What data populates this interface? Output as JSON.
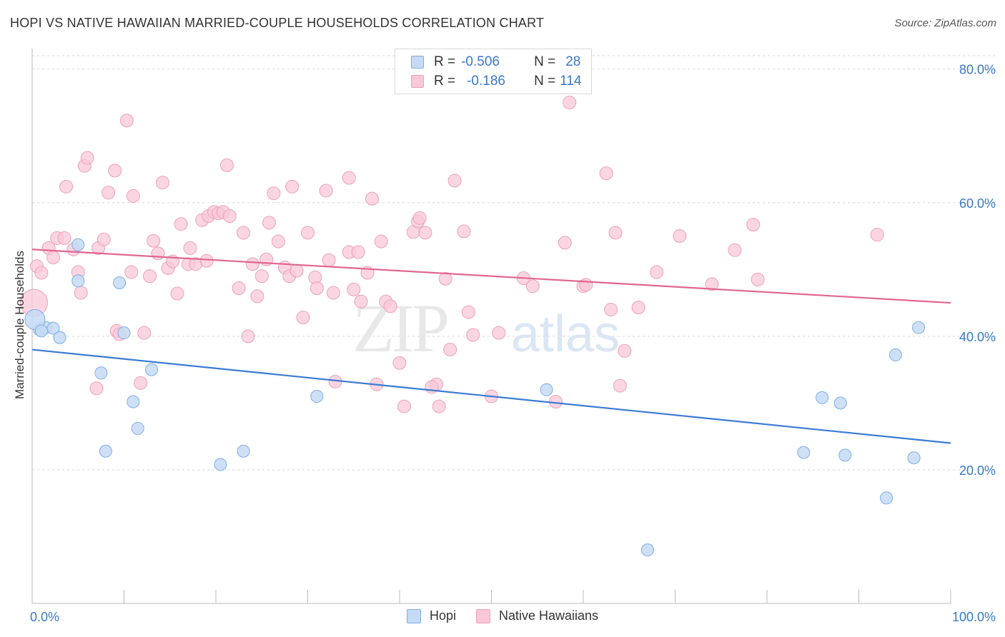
{
  "header": {
    "title": "HOPI VS NATIVE HAWAIIAN MARRIED-COUPLE HOUSEHOLDS CORRELATION CHART",
    "source": "Source: ZipAtlas.com"
  },
  "legend_top": {
    "rows": [
      {
        "r_label": "R =",
        "r_value": "-0.506",
        "n_label": "N =",
        "n_value": "28"
      },
      {
        "r_label": "R =",
        "r_value": "-0.186",
        "n_label": "N =",
        "n_value": "114"
      }
    ]
  },
  "watermark": {
    "zip": "ZIP",
    "atlas": "atlas"
  },
  "chart_data": {
    "type": "scatter",
    "xlabel": "",
    "ylabel": "Married-couple Households",
    "xlim": [
      0,
      100
    ],
    "ylim": [
      0,
      82
    ],
    "x_tick_labels": [
      {
        "value": 0,
        "label": "0.0%"
      },
      {
        "value": 100,
        "label": "100.0%"
      }
    ],
    "y_tick_labels": [
      {
        "value": 20,
        "label": "20.0%"
      },
      {
        "value": 40,
        "label": "40.0%"
      },
      {
        "value": 60,
        "label": "60.0%"
      },
      {
        "value": 80,
        "label": "80.0%"
      }
    ],
    "grid": "horizontal dashed",
    "legend": "bottom-center",
    "colors": {
      "hopi_fill": "#c5daf5",
      "hopi_stroke": "#7eaee6",
      "hopi_line": "#3a7bd5",
      "nh_fill": "#f9c8d8",
      "nh_stroke": "#eca0bb",
      "nh_line": "#e0678f",
      "value_text": "#3a78c9"
    },
    "series": [
      {
        "name": "Hopi",
        "trend": {
          "x": [
            0,
            100
          ],
          "y": [
            38.0,
            24.0
          ]
        },
        "points": [
          [
            0.8,
            41
          ],
          [
            1.5,
            41.3
          ],
          [
            2.3,
            41.2
          ],
          [
            3.0,
            39.8
          ],
          [
            5.0,
            53.7
          ],
          [
            5.0,
            48.3
          ],
          [
            7.5,
            34.5
          ],
          [
            9.5,
            48.0
          ],
          [
            8.0,
            22.8
          ],
          [
            10.0,
            40.5
          ],
          [
            11.5,
            26.2
          ],
          [
            11.0,
            30.2
          ],
          [
            13.0,
            35.0
          ],
          [
            20.5,
            20.8
          ],
          [
            23.0,
            22.8
          ],
          [
            31.0,
            31.0
          ],
          [
            56.0,
            32.0
          ],
          [
            67.0,
            8.0
          ],
          [
            86.0,
            30.8
          ],
          [
            88.0,
            30.0
          ],
          [
            84.0,
            22.6
          ],
          [
            88.5,
            22.2
          ],
          [
            93.0,
            15.8
          ],
          [
            94.0,
            37.2
          ],
          [
            96.0,
            21.8
          ],
          [
            96.5,
            41.3
          ],
          [
            0.3,
            42.5
          ],
          [
            1.0,
            40.8
          ]
        ]
      },
      {
        "name": "Native Hawaiians",
        "trend": {
          "x": [
            0,
            100
          ],
          "y": [
            53.0,
            45.0
          ]
        },
        "points": [
          [
            0.5,
            50.5
          ],
          [
            1.0,
            49.5
          ],
          [
            1.8,
            53.2
          ],
          [
            2.3,
            51.8
          ],
          [
            2.7,
            54.7
          ],
          [
            3.5,
            54.7
          ],
          [
            4.5,
            53.0
          ],
          [
            5.0,
            49.6
          ],
          [
            5.3,
            46.5
          ],
          [
            3.7,
            62.4
          ],
          [
            5.7,
            65.5
          ],
          [
            6.0,
            66.7
          ],
          [
            7.0,
            32.2
          ],
          [
            7.2,
            53.2
          ],
          [
            7.8,
            54.5
          ],
          [
            8.3,
            61.5
          ],
          [
            9.0,
            64.8
          ],
          [
            9.2,
            40.8
          ],
          [
            9.5,
            40.3
          ],
          [
            10.3,
            72.3
          ],
          [
            10.8,
            49.6
          ],
          [
            11.0,
            61.0
          ],
          [
            11.8,
            33.0
          ],
          [
            12.2,
            40.5
          ],
          [
            12.8,
            49.0
          ],
          [
            13.2,
            54.3
          ],
          [
            13.7,
            52.4
          ],
          [
            14.2,
            63.0
          ],
          [
            14.8,
            50.2
          ],
          [
            15.3,
            51.2
          ],
          [
            15.8,
            46.4
          ],
          [
            16.2,
            56.8
          ],
          [
            17.0,
            50.8
          ],
          [
            17.2,
            53.2
          ],
          [
            17.8,
            50.8
          ],
          [
            18.5,
            57.4
          ],
          [
            19.0,
            51.3
          ],
          [
            19.2,
            58.0
          ],
          [
            19.8,
            58.6
          ],
          [
            20.3,
            58.4
          ],
          [
            20.8,
            58.6
          ],
          [
            21.2,
            65.6
          ],
          [
            21.5,
            58.0
          ],
          [
            22.5,
            47.2
          ],
          [
            23.0,
            55.5
          ],
          [
            23.5,
            40.0
          ],
          [
            24.0,
            50.8
          ],
          [
            24.5,
            46.0
          ],
          [
            25.0,
            49.0
          ],
          [
            25.5,
            51.5
          ],
          [
            25.8,
            57.0
          ],
          [
            26.3,
            61.4
          ],
          [
            26.8,
            54.2
          ],
          [
            27.5,
            50.3
          ],
          [
            28.0,
            49.0
          ],
          [
            28.3,
            62.4
          ],
          [
            28.8,
            49.8
          ],
          [
            29.5,
            42.8
          ],
          [
            30.0,
            55.5
          ],
          [
            30.8,
            48.8
          ],
          [
            31.0,
            47.2
          ],
          [
            32.0,
            61.8
          ],
          [
            32.3,
            51.4
          ],
          [
            32.8,
            46.5
          ],
          [
            33.0,
            33.2
          ],
          [
            34.5,
            52.6
          ],
          [
            34.5,
            63.7
          ],
          [
            35.0,
            47.0
          ],
          [
            35.5,
            52.6
          ],
          [
            35.8,
            45.2
          ],
          [
            36.5,
            49.5
          ],
          [
            37.0,
            60.6
          ],
          [
            37.5,
            32.8
          ],
          [
            38.0,
            54.2
          ],
          [
            38.5,
            45.2
          ],
          [
            39.0,
            44.5
          ],
          [
            40.0,
            36.0
          ],
          [
            40.5,
            29.5
          ],
          [
            41.5,
            55.6
          ],
          [
            42.0,
            57.2
          ],
          [
            42.2,
            57.7
          ],
          [
            42.8,
            55.5
          ],
          [
            44.0,
            32.8
          ],
          [
            44.3,
            29.5
          ],
          [
            43.5,
            32.4
          ],
          [
            45.0,
            48.6
          ],
          [
            45.5,
            38.0
          ],
          [
            46.0,
            63.3
          ],
          [
            47.0,
            55.7
          ],
          [
            47.5,
            43.6
          ],
          [
            50.0,
            31.0
          ],
          [
            50.8,
            40.5
          ],
          [
            53.5,
            48.7
          ],
          [
            54.5,
            47.5
          ],
          [
            57.0,
            30.2
          ],
          [
            58.5,
            75.0
          ],
          [
            58.0,
            54.0
          ],
          [
            60.0,
            47.5
          ],
          [
            60.3,
            47.7
          ],
          [
            62.5,
            64.4
          ],
          [
            63.0,
            44.0
          ],
          [
            63.5,
            55.5
          ],
          [
            64.0,
            32.6
          ],
          [
            64.5,
            37.8
          ],
          [
            66.0,
            44.3
          ],
          [
            68.0,
            49.6
          ],
          [
            70.5,
            55.0
          ],
          [
            74.0,
            47.8
          ],
          [
            76.5,
            52.9
          ],
          [
            78.5,
            56.7
          ],
          [
            79.0,
            48.5
          ],
          [
            92.0,
            55.2
          ],
          [
            0.2,
            45.0
          ],
          [
            48.0,
            40.2
          ]
        ]
      }
    ]
  },
  "bottom_legend": {
    "items": [
      {
        "label": "Hopi"
      },
      {
        "label": "Native Hawaiians"
      }
    ]
  }
}
